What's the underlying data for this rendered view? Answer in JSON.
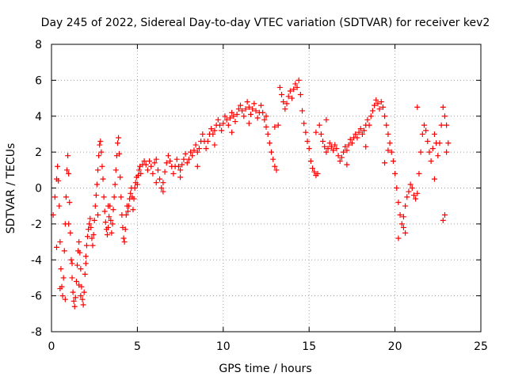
{
  "chart_data": {
    "type": "scatter",
    "title": "Day 245 of 2022, Sidereal Day-to-day VTEC variation (SDTVAR) for receiver kev2",
    "xlabel": "GPS time / hours",
    "ylabel": "SDTVAR / TECUs",
    "xlim": [
      0,
      25
    ],
    "ylim": [
      -8,
      8
    ],
    "xticks": [
      0,
      5,
      10,
      15,
      20,
      25
    ],
    "yticks": [
      -8,
      -6,
      -4,
      -2,
      0,
      2,
      4,
      6,
      8
    ],
    "xtick_labels": [
      "0",
      "5",
      "10",
      "15",
      "20",
      "25"
    ],
    "ytick_labels": [
      "-8",
      "-6",
      "-4",
      "-2",
      "0",
      "2",
      "4",
      "6",
      "8"
    ],
    "grid": true,
    "legend": "none",
    "marker": "+",
    "marker_color": "#ff0000",
    "series": [
      {
        "name": "SDTVAR",
        "points": [
          [
            0.1,
            -1.5
          ],
          [
            0.2,
            -0.5
          ],
          [
            0.3,
            0.5
          ],
          [
            0.35,
            1.2
          ],
          [
            0.4,
            0.4
          ],
          [
            0.45,
            -1.0
          ],
          [
            0.5,
            -3.0
          ],
          [
            0.55,
            -4.5
          ],
          [
            0.6,
            -5.5
          ],
          [
            0.65,
            -6.0
          ],
          [
            0.7,
            -5.0
          ],
          [
            0.75,
            -3.5
          ],
          [
            0.8,
            -2.0
          ],
          [
            0.85,
            -0.5
          ],
          [
            0.9,
            1.0
          ],
          [
            0.95,
            1.8
          ],
          [
            1.0,
            0.8
          ],
          [
            1.05,
            -0.8
          ],
          [
            1.1,
            -2.5
          ],
          [
            1.15,
            -4.0
          ],
          [
            1.2,
            -5.0
          ],
          [
            1.25,
            -5.8
          ],
          [
            1.3,
            -6.3
          ],
          [
            1.35,
            -6.6
          ],
          [
            1.4,
            -6.1
          ],
          [
            1.45,
            -5.2
          ],
          [
            1.5,
            -4.3
          ],
          [
            1.55,
            -3.5
          ],
          [
            1.6,
            -3.0
          ],
          [
            1.65,
            -3.6
          ],
          [
            1.7,
            -4.5
          ],
          [
            1.75,
            -5.5
          ],
          [
            1.8,
            -6.2
          ],
          [
            1.85,
            -6.5
          ],
          [
            1.9,
            -5.8
          ],
          [
            1.95,
            -4.8
          ],
          [
            2.0,
            -3.8
          ],
          [
            2.05,
            -3.2
          ],
          [
            2.1,
            -2.7
          ],
          [
            2.15,
            -2.3
          ],
          [
            2.2,
            -2.0
          ],
          [
            2.25,
            -1.7
          ],
          [
            2.3,
            -2.2
          ],
          [
            2.35,
            -2.8
          ],
          [
            2.4,
            -3.2
          ],
          [
            2.45,
            -2.6
          ],
          [
            2.5,
            -1.8
          ],
          [
            2.55,
            -1.0
          ],
          [
            2.6,
            -0.4
          ],
          [
            2.65,
            0.2
          ],
          [
            2.7,
            1.0
          ],
          [
            2.75,
            1.8
          ],
          [
            2.8,
            2.4
          ],
          [
            2.85,
            2.6
          ],
          [
            2.9,
            2.0
          ],
          [
            2.95,
            1.2
          ],
          [
            3.0,
            0.5
          ],
          [
            3.05,
            -0.5
          ],
          [
            3.1,
            -1.3
          ],
          [
            3.15,
            -1.9
          ],
          [
            3.2,
            -2.3
          ],
          [
            3.25,
            -2.6
          ],
          [
            3.3,
            -2.2
          ],
          [
            3.35,
            -1.6
          ],
          [
            3.4,
            -1.0
          ],
          [
            3.45,
            -1.8
          ],
          [
            3.5,
            -2.5
          ],
          [
            3.55,
            -2.0
          ],
          [
            3.6,
            -1.2
          ],
          [
            3.65,
            -0.5
          ],
          [
            3.7,
            0.2
          ],
          [
            3.75,
            1.0
          ],
          [
            3.8,
            1.8
          ],
          [
            3.85,
            2.5
          ],
          [
            3.9,
            2.8
          ],
          [
            3.95,
            1.9
          ],
          [
            4.0,
            0.6
          ],
          [
            4.05,
            -0.5
          ],
          [
            4.1,
            -1.5
          ],
          [
            4.15,
            -2.2
          ],
          [
            4.2,
            -2.8
          ],
          [
            4.25,
            -3.0
          ],
          [
            4.3,
            -2.3
          ],
          [
            4.35,
            -1.5
          ],
          [
            4.4,
            -1.0
          ],
          [
            4.45,
            -1.3
          ],
          [
            4.5,
            -1.0
          ],
          [
            4.55,
            -0.6
          ],
          [
            4.6,
            -0.3
          ],
          [
            4.65,
            0.0
          ],
          [
            4.7,
            -0.5
          ],
          [
            4.75,
            -1.2
          ],
          [
            4.8,
            -0.6
          ],
          [
            4.85,
            0.0
          ],
          [
            4.9,
            0.3
          ],
          [
            4.95,
            0.6
          ],
          [
            5.0,
            0.2
          ],
          [
            5.05,
            0.7
          ],
          [
            5.1,
            1.0
          ],
          [
            5.15,
            1.2
          ],
          [
            5.2,
            0.8
          ],
          [
            5.3,
            1.3
          ],
          [
            5.4,
            1.5
          ],
          [
            5.5,
            1.3
          ],
          [
            5.6,
            1.0
          ],
          [
            5.7,
            1.5
          ],
          [
            5.8,
            1.2
          ],
          [
            5.9,
            0.8
          ],
          [
            6.0,
            1.4
          ],
          [
            6.1,
            1.6
          ],
          [
            6.2,
            1.0
          ],
          [
            6.3,
            0.5
          ],
          [
            6.4,
            0.0
          ],
          [
            6.5,
            0.3
          ],
          [
            6.6,
            0.9
          ],
          [
            6.7,
            1.4
          ],
          [
            6.8,
            1.8
          ],
          [
            6.9,
            1.5
          ],
          [
            7.0,
            1.2
          ],
          [
            7.1,
            0.8
          ],
          [
            7.2,
            1.2
          ],
          [
            7.3,
            1.6
          ],
          [
            7.4,
            1.2
          ],
          [
            7.5,
            1.0
          ],
          [
            7.6,
            1.3
          ],
          [
            7.7,
            1.6
          ],
          [
            7.8,
            1.9
          ],
          [
            7.9,
            1.4
          ],
          [
            8.0,
            1.6
          ],
          [
            8.1,
            2.0
          ],
          [
            8.2,
            1.8
          ],
          [
            8.3,
            2.1
          ],
          [
            8.4,
            2.4
          ],
          [
            8.5,
            2.0
          ],
          [
            8.6,
            2.2
          ],
          [
            8.7,
            2.6
          ],
          [
            8.8,
            3.0
          ],
          [
            8.9,
            2.6
          ],
          [
            9.0,
            2.2
          ],
          [
            9.1,
            2.6
          ],
          [
            9.2,
            3.0
          ],
          [
            9.3,
            3.3
          ],
          [
            9.4,
            3.0
          ],
          [
            9.5,
            3.2
          ],
          [
            9.6,
            3.5
          ],
          [
            9.7,
            3.8
          ],
          [
            9.8,
            3.5
          ],
          [
            9.9,
            3.2
          ],
          [
            10.0,
            3.6
          ],
          [
            10.1,
            4.0
          ],
          [
            10.2,
            3.8
          ],
          [
            10.3,
            3.5
          ],
          [
            10.4,
            3.9
          ],
          [
            10.5,
            4.2
          ],
          [
            10.6,
            4.0
          ],
          [
            10.7,
            3.7
          ],
          [
            10.8,
            4.1
          ],
          [
            10.9,
            4.4
          ],
          [
            11.0,
            4.6
          ],
          [
            11.1,
            4.3
          ],
          [
            11.2,
            4.0
          ],
          [
            11.3,
            4.4
          ],
          [
            11.4,
            4.8
          ],
          [
            11.5,
            4.5
          ],
          [
            11.6,
            4.1
          ],
          [
            11.7,
            4.4
          ],
          [
            11.8,
            4.7
          ],
          [
            11.9,
            4.3
          ],
          [
            12.0,
            3.9
          ],
          [
            12.1,
            4.2
          ],
          [
            12.2,
            4.6
          ],
          [
            12.3,
            4.2
          ],
          [
            12.4,
            3.8
          ],
          [
            12.5,
            3.4
          ],
          [
            12.6,
            3.0
          ],
          [
            12.7,
            2.5
          ],
          [
            12.8,
            2.0
          ],
          [
            12.9,
            1.6
          ],
          [
            13.0,
            1.2
          ],
          [
            13.1,
            1.0
          ],
          [
            13.2,
            3.5
          ],
          [
            13.3,
            5.6
          ],
          [
            13.4,
            5.2
          ],
          [
            13.5,
            4.8
          ],
          [
            13.6,
            4.4
          ],
          [
            13.7,
            4.7
          ],
          [
            13.8,
            5.1
          ],
          [
            13.9,
            5.4
          ],
          [
            14.0,
            5.0
          ],
          [
            14.1,
            5.5
          ],
          [
            14.2,
            5.8
          ],
          [
            14.3,
            5.6
          ],
          [
            14.4,
            6.0
          ],
          [
            14.5,
            5.2
          ],
          [
            14.6,
            4.3
          ],
          [
            14.7,
            3.6
          ],
          [
            14.8,
            3.1
          ],
          [
            14.9,
            2.6
          ],
          [
            15.0,
            2.2
          ],
          [
            15.1,
            1.5
          ],
          [
            15.2,
            1.1
          ],
          [
            15.3,
            0.9
          ],
          [
            15.4,
            0.7
          ],
          [
            15.5,
            0.8
          ],
          [
            15.6,
            3.5
          ],
          [
            15.7,
            3.0
          ],
          [
            15.8,
            2.6
          ],
          [
            15.9,
            2.3
          ],
          [
            16.0,
            2.0
          ],
          [
            16.1,
            2.2
          ],
          [
            16.2,
            2.5
          ],
          [
            16.3,
            2.3
          ],
          [
            16.4,
            2.1
          ],
          [
            16.5,
            2.4
          ],
          [
            16.6,
            2.2
          ],
          [
            16.7,
            1.8
          ],
          [
            16.8,
            1.5
          ],
          [
            16.9,
            1.7
          ],
          [
            17.0,
            2.0
          ],
          [
            17.1,
            2.3
          ],
          [
            17.2,
            2.1
          ],
          [
            17.3,
            2.4
          ],
          [
            17.4,
            2.7
          ],
          [
            17.5,
            2.5
          ],
          [
            17.6,
            2.8
          ],
          [
            17.7,
            3.0
          ],
          [
            17.8,
            2.8
          ],
          [
            17.9,
            3.1
          ],
          [
            18.0,
            3.3
          ],
          [
            18.1,
            3.0
          ],
          [
            18.2,
            3.2
          ],
          [
            18.3,
            3.5
          ],
          [
            18.4,
            3.8
          ],
          [
            18.5,
            3.5
          ],
          [
            18.6,
            4.0
          ],
          [
            18.7,
            4.3
          ],
          [
            18.8,
            4.6
          ],
          [
            18.9,
            4.9
          ],
          [
            19.0,
            4.7
          ],
          [
            19.1,
            4.4
          ],
          [
            19.2,
            4.8
          ],
          [
            19.3,
            4.5
          ],
          [
            19.4,
            4.0
          ],
          [
            19.5,
            3.5
          ],
          [
            19.6,
            3.0
          ],
          [
            19.7,
            2.5
          ],
          [
            19.8,
            2.0
          ],
          [
            19.9,
            1.5
          ],
          [
            20.0,
            0.8
          ],
          [
            20.1,
            0.0
          ],
          [
            20.2,
            -0.8
          ],
          [
            20.3,
            -1.5
          ],
          [
            20.4,
            -2.0
          ],
          [
            20.5,
            -1.6
          ],
          [
            20.6,
            -1.0
          ],
          [
            20.7,
            -0.5
          ],
          [
            20.8,
            -0.2
          ],
          [
            20.9,
            0.2
          ],
          [
            21.0,
            0.0
          ],
          [
            21.1,
            -0.4
          ],
          [
            21.2,
            -0.6
          ],
          [
            21.3,
            -0.3
          ],
          [
            21.4,
            0.8
          ],
          [
            21.5,
            2.0
          ],
          [
            21.6,
            3.0
          ],
          [
            21.7,
            3.5
          ],
          [
            21.8,
            3.2
          ],
          [
            21.9,
            2.6
          ],
          [
            22.0,
            2.0
          ],
          [
            22.1,
            1.5
          ],
          [
            22.2,
            2.2
          ],
          [
            22.3,
            3.0
          ],
          [
            22.4,
            2.5
          ],
          [
            22.5,
            1.8
          ],
          [
            22.6,
            2.5
          ],
          [
            22.7,
            3.5
          ],
          [
            22.8,
            4.5
          ],
          [
            22.9,
            4.0
          ],
          [
            23.0,
            3.5
          ],
          [
            23.1,
            2.5
          ],
          [
            21.3,
            4.5
          ],
          [
            20.6,
            -2.5
          ],
          [
            19.6,
            2.1
          ],
          [
            19.4,
            1.4
          ],
          [
            18.3,
            2.3
          ],
          [
            17.2,
            1.3
          ],
          [
            16.0,
            3.8
          ],
          [
            15.4,
            3.1
          ],
          [
            13.0,
            3.4
          ],
          [
            12.5,
            4.0
          ],
          [
            11.5,
            3.6
          ],
          [
            10.5,
            3.1
          ],
          [
            9.5,
            2.4
          ],
          [
            8.5,
            1.2
          ],
          [
            7.5,
            0.6
          ],
          [
            6.5,
            -0.2
          ],
          [
            6.1,
            0.3
          ],
          [
            3.3,
            -1.0
          ],
          [
            2.7,
            -1.5
          ],
          [
            2.0,
            -4.2
          ],
          [
            1.6,
            -5.4
          ],
          [
            1.2,
            -4.2
          ],
          [
            0.8,
            -6.2
          ],
          [
            0.5,
            -5.6
          ],
          [
            0.3,
            -3.3
          ],
          [
            1.0,
            -2.0
          ],
          [
            1.7,
            -6.0
          ],
          [
            22.9,
            -1.5
          ],
          [
            22.8,
            -1.8
          ],
          [
            20.2,
            -2.8
          ],
          [
            20.5,
            -2.2
          ],
          [
            22.3,
            0.5
          ],
          [
            23.0,
            2.0
          ]
        ]
      }
    ]
  }
}
